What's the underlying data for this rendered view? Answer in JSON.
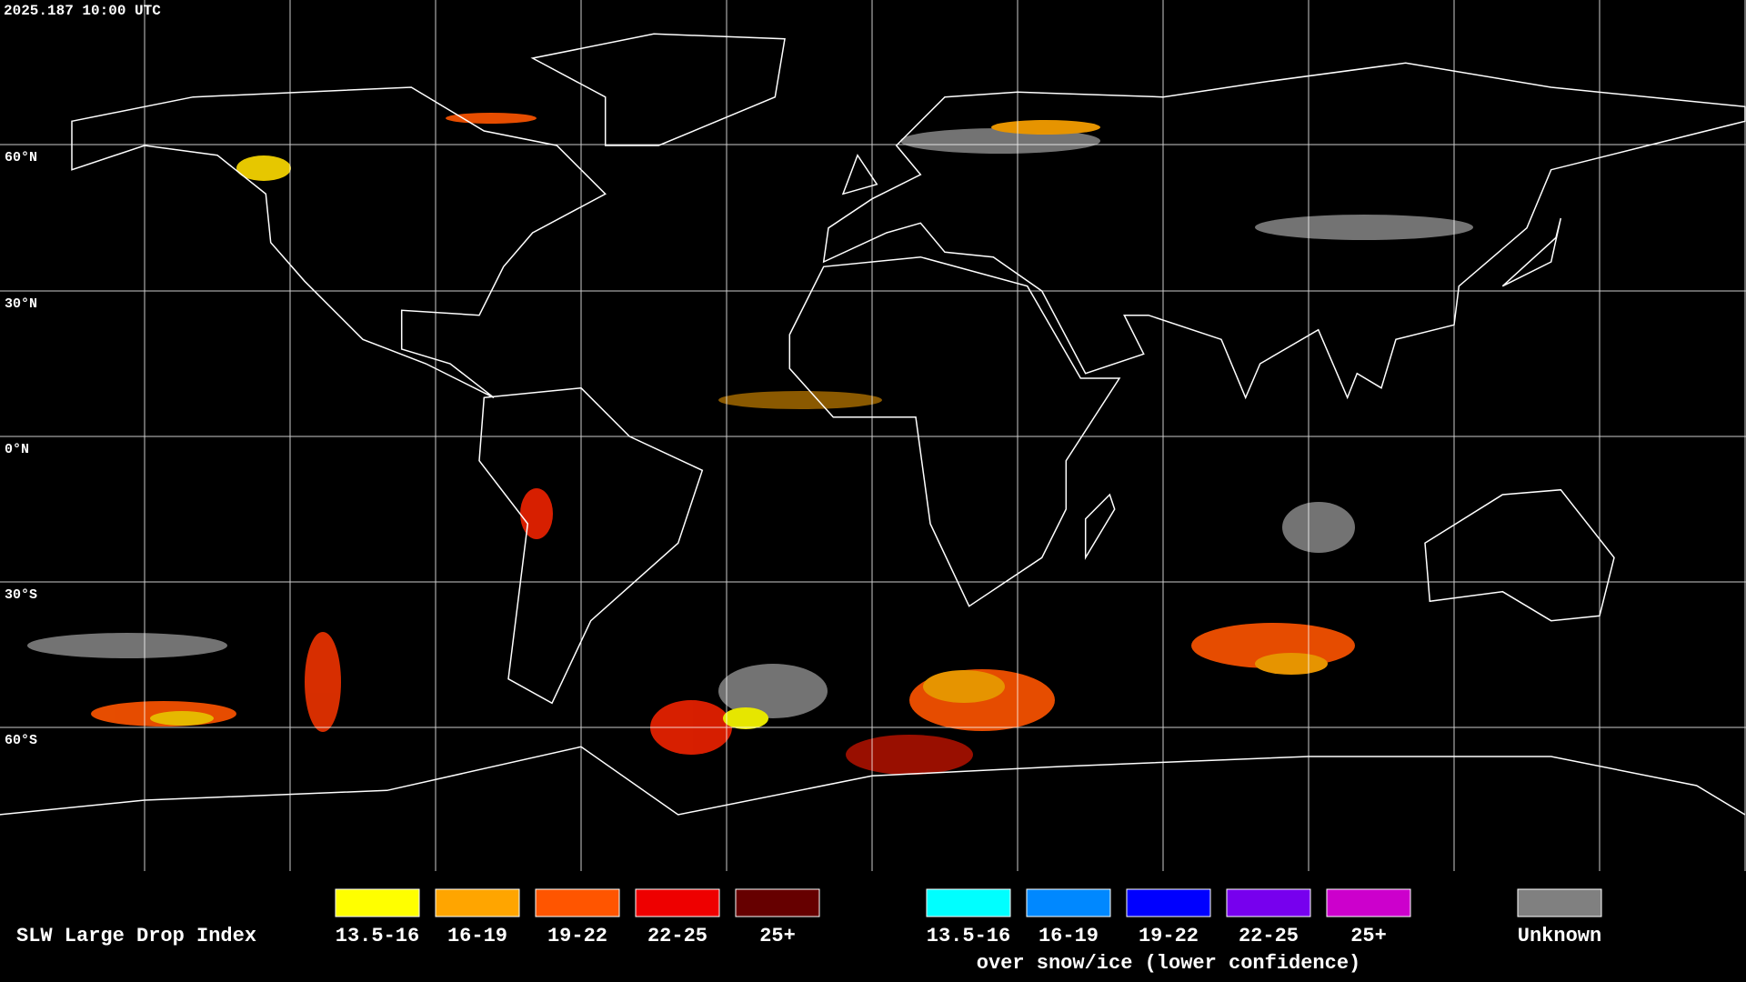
{
  "header": {
    "timestamp": "2025.187 10:00 UTC"
  },
  "grid": {
    "lat_labels": [
      "60°N",
      "30°N",
      "0°N",
      "30°S",
      "60°S"
    ]
  },
  "legend": {
    "title": "SLW Large Drop Index",
    "liquid": [
      {
        "label": "13.5-16",
        "color": "#ffff00"
      },
      {
        "label": "16-19",
        "color": "#ffa500"
      },
      {
        "label": "19-22",
        "color": "#ff5500"
      },
      {
        "label": "22-25",
        "color": "#ee0000"
      },
      {
        "label": "25+",
        "color": "#660000"
      }
    ],
    "snow_ice": [
      {
        "label": "13.5-16",
        "color": "#00ffff"
      },
      {
        "label": "16-19",
        "color": "#0088ff"
      },
      {
        "label": "19-22",
        "color": "#0000ff"
      },
      {
        "label": "22-25",
        "color": "#7700ee"
      },
      {
        "label": "25+",
        "color": "#cc00cc"
      }
    ],
    "snow_ice_note": "over snow/ice (lower confidence)",
    "unknown": {
      "label": "Unknown",
      "color": "#808080"
    }
  }
}
